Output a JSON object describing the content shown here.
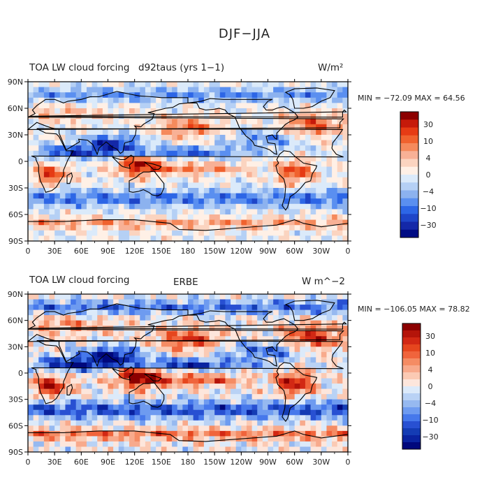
{
  "page_title": "DJF−JJA",
  "chart_data": [
    {
      "type": "heatmap",
      "title": "TOA LW cloud forcing",
      "subtitle": "d92taus (yrs 1−1)",
      "units": "W/m²",
      "stats": "MIN = −72.09 MAX =  64.56",
      "min": -72.09,
      "max": 64.56,
      "x_ticks": [
        "0",
        "30E",
        "60E",
        "90E",
        "120E",
        "150E",
        "180",
        "150W",
        "120W",
        "90W",
        "60W",
        "30W",
        "0"
      ],
      "y_ticks": [
        "90N",
        "60N",
        "30N",
        "0",
        "30S",
        "60S",
        "90S"
      ],
      "colorbar_labels": [
        "30",
        "10",
        "4",
        "0",
        "−4",
        "−10",
        "−30"
      ],
      "colorbar_colors": [
        "#8c0000",
        "#c61a0a",
        "#e63b14",
        "#f0622e",
        "#f58a5c",
        "#f8b196",
        "#fbd4c0",
        "#fff0e6",
        "#dbeafa",
        "#b5d0f5",
        "#8cb2ef",
        "#5a8ff0",
        "#2d66e6",
        "#1e45c8",
        "#1428a8",
        "#000c84"
      ]
    },
    {
      "type": "heatmap",
      "title": "TOA LW cloud forcing",
      "subtitle": "ERBE",
      "units": "W m^−2",
      "stats": "MIN = −106.05 MAX =  78.82",
      "min": -106.05,
      "max": 78.82,
      "x_ticks": [
        "0",
        "30E",
        "60E",
        "90E",
        "120E",
        "150E",
        "180",
        "150W",
        "120W",
        "90W",
        "60W",
        "30W",
        "0"
      ],
      "y_ticks": [
        "90N",
        "60N",
        "30N",
        "0",
        "30S",
        "60S",
        "90S"
      ],
      "colorbar_labels": [
        "30",
        "10",
        "4",
        "0",
        "−4",
        "−10",
        "−30"
      ],
      "colorbar_colors": [
        "#8c0000",
        "#b4140a",
        "#d22814",
        "#e6461e",
        "#f0643c",
        "#f58c64",
        "#f8aa8c",
        "#fbcab4",
        "#fde6dc",
        "#dceafa",
        "#b9d2f5",
        "#96b9f0",
        "#6e9bf0",
        "#4678eb",
        "#2850d2",
        "#143cb4",
        "#0a23a0",
        "#00087c"
      ]
    }
  ]
}
